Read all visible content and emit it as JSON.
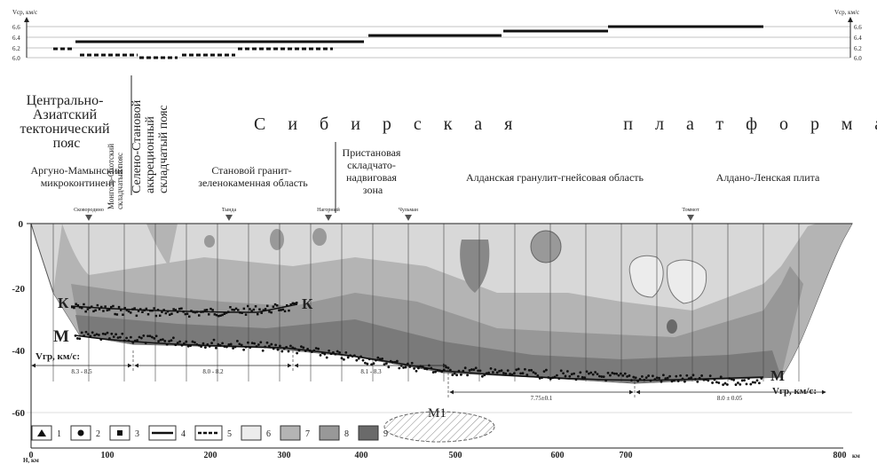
{
  "velocity_panel": {
    "label_left": "Vср, км/с",
    "label_right": "Vср, км/с",
    "ticks": [
      "6.6",
      "6.4",
      "6.2",
      "6.0"
    ]
  },
  "regions": {
    "central_asian": [
      "Центрально-",
      "Азиатский",
      "тектонический",
      "пояс"
    ],
    "mongol_okhotsk": [
      "Монголо-Охотский",
      "складчатый пояс"
    ],
    "seleno_stanovoy": [
      "Селено-Становой",
      "аккреционный",
      "складчатый пояс"
    ],
    "siberian_platform": "Сибирская платформа",
    "argun": [
      "Аргуно-Мамынский",
      "микроконтинент"
    ],
    "stanovoy": [
      "Становой гранит-",
      "зеленокаменная область"
    ],
    "pristanovaya": [
      "Пристановая",
      "складчато-",
      "надвиговая",
      "зона"
    ],
    "aldan": "Алданская гранулит-гнейсовая область",
    "aldan_lena": "Алдано-Ленская плита"
  },
  "stations": [
    "Сковородино",
    "Тында",
    "Нагорный",
    "Чульман",
    "Томмот"
  ],
  "depth_axis": {
    "ticks": [
      "0",
      "-20",
      "-40",
      "-60"
    ],
    "label": "H, км"
  },
  "distance_axis": {
    "ticks": [
      "0",
      "100",
      "200",
      "300",
      "400",
      "500",
      "600",
      "700",
      "800"
    ],
    "unit": "км"
  },
  "boundaries": {
    "k_left": "К",
    "k_right": "К",
    "m_left": "М",
    "m_right": "М",
    "m1": "М1"
  },
  "boundary_velocity": {
    "label_left": "Vгр, км/с:",
    "label_right": "Vгр, км/с:",
    "ranges": [
      "8.3 - 8.5",
      "8.0 - 8.2",
      "8.1 - 8.3",
      "7.75±0.1",
      "8.0 ± 0.05"
    ]
  },
  "legend": [
    "1",
    "2",
    "3",
    "4",
    "5",
    "6",
    "7",
    "8",
    "9"
  ]
}
